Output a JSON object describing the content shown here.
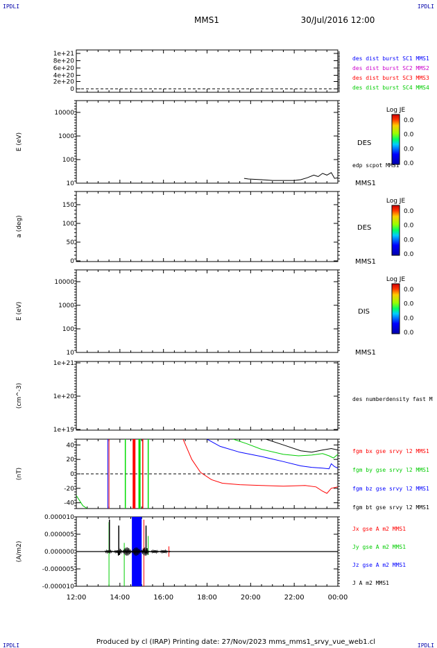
{
  "header": {
    "corner_tl": "IPDLI",
    "corner_tr": "IPDLI",
    "corner_bl": "IPDLI",
    "corner_br": "IPDLI",
    "title": "MMS1",
    "datetime": "30/Jul/2016 12:00"
  },
  "footer": {
    "text": "Produced by cl (IRAP)   Printing date: 27/Nov/2023   mms_mms1_srvy_vue_web1.cl"
  },
  "colors": {
    "black": "#000000",
    "red": "#ff0000",
    "green": "#00dd00",
    "blue": "#0000ff",
    "magenta": "#cc00cc",
    "bright_green": "#00ee00"
  },
  "chart_data": [
    {
      "type": "line",
      "panel": "burst",
      "yticks": [
        "1e+21",
        "8e+20",
        "6e+20",
        "4e+20",
        "2e+20",
        "0"
      ],
      "legend": [
        {
          "label": "des dist burst SC1 MMS1",
          "color": "#0000ff"
        },
        {
          "label": "des dist burst SC2 MMS2",
          "color": "#cc00cc"
        },
        {
          "label": "des dist burst SC3 MMS3",
          "color": "#ff0000"
        },
        {
          "label": "des dist burst SC4 MMS4",
          "color": "#00cc00"
        }
      ]
    },
    {
      "type": "heatmap",
      "panel": "des-energy",
      "ylabel": "E (eV)",
      "yscale": "log",
      "yticks": [
        "10000",
        "1000",
        "100",
        "10"
      ],
      "right_label": "DES",
      "overlay_label": "edp scpot MMS1",
      "bottom_label": "MMS1",
      "colorbar": {
        "title": "Log JE",
        "ticks": [
          "0.0",
          "0.0",
          "0.0",
          "0.0"
        ]
      },
      "scpot_line": [
        [
          19.7,
          16
        ],
        [
          19.9,
          15
        ],
        [
          20.5,
          14
        ],
        [
          21.0,
          13
        ],
        [
          21.5,
          13
        ],
        [
          22.0,
          13
        ],
        [
          22.3,
          14
        ],
        [
          22.6,
          17
        ],
        [
          22.9,
          22
        ],
        [
          23.1,
          19
        ],
        [
          23.3,
          26
        ],
        [
          23.5,
          22
        ],
        [
          23.7,
          28
        ],
        [
          23.85,
          16
        ],
        [
          24.0,
          17
        ]
      ]
    },
    {
      "type": "heatmap",
      "panel": "des-pitch",
      "ylabel": "a (deg)",
      "yticks": [
        "150",
        "100",
        "50",
        "0"
      ],
      "right_label": "DES",
      "bottom_label": "MMS1",
      "colorbar": {
        "title": "Log JE",
        "ticks": [
          "0.0",
          "0.0",
          "0.0",
          "0.0"
        ]
      }
    },
    {
      "type": "heatmap",
      "panel": "dis-energy",
      "ylabel": "E (eV)",
      "yscale": "log",
      "yticks": [
        "10000",
        "1000",
        "100",
        "10"
      ],
      "right_label": "DIS",
      "bottom_label": "MMS1",
      "colorbar": {
        "title": "Log JE",
        "ticks": [
          "0.0",
          "0.0",
          "0.0",
          "0.0"
        ]
      }
    },
    {
      "type": "line",
      "panel": "density",
      "ylabel": "(cm^-3)",
      "yscale": "log",
      "yticks": [
        "1e+21",
        "1e+20",
        "1e+19"
      ],
      "right_label": "des numberdensity fast M"
    },
    {
      "type": "line",
      "panel": "fgm",
      "ylabel": "(nT)",
      "ylim": [
        -48,
        48
      ],
      "yticks": [
        "40",
        "20",
        "0",
        "-20",
        "-40"
      ],
      "legend": [
        {
          "label": "fgm bx gse srvy l2 MMS1",
          "color": "#ff0000"
        },
        {
          "label": "fgm by gse srvy l2 MMS1",
          "color": "#00cc00"
        },
        {
          "label": "fgm bz gse srvy l2 MMS1",
          "color": "#0000ff"
        },
        {
          "label": "fgm bt gse srvy l2 MMS1",
          "color": "#000000"
        }
      ],
      "series": [
        {
          "name": "fgm bx gse srvy l2 MMS1",
          "color": "#ff0000",
          "points": [
            [
              16.9,
              48
            ],
            [
              17.3,
              20
            ],
            [
              17.7,
              2
            ],
            [
              18.2,
              -8
            ],
            [
              18.7,
              -13
            ],
            [
              19.5,
              -15
            ],
            [
              20.5,
              -16
            ],
            [
              21.5,
              -17
            ],
            [
              22.5,
              -16
            ],
            [
              23.0,
              -18
            ],
            [
              23.3,
              -24
            ],
            [
              23.5,
              -27
            ],
            [
              23.7,
              -20
            ],
            [
              24.0,
              -18
            ]
          ]
        },
        {
          "name": "fgm by gse srvy l2 MMS1",
          "color": "#00cc00",
          "points": [
            [
              19.2,
              48
            ],
            [
              19.8,
              42
            ],
            [
              20.5,
              34
            ],
            [
              21.5,
              27
            ],
            [
              22.2,
              25
            ],
            [
              22.8,
              26
            ],
            [
              23.3,
              28
            ],
            [
              23.6,
              25
            ],
            [
              23.8,
              22
            ],
            [
              24.0,
              27
            ]
          ]
        },
        {
          "name": "fgm bz gse srvy l2 MMS1",
          "color": "#0000ff",
          "points": [
            [
              18.0,
              48
            ],
            [
              18.6,
              38
            ],
            [
              19.5,
              30
            ],
            [
              20.5,
              24
            ],
            [
              21.5,
              17
            ],
            [
              22.3,
              11
            ],
            [
              22.8,
              9
            ],
            [
              23.3,
              8
            ],
            [
              23.6,
              7
            ],
            [
              23.7,
              14
            ],
            [
              23.85,
              10
            ],
            [
              24.0,
              8
            ]
          ]
        },
        {
          "name": "fgm bt gse srvy l2 MMS1",
          "color": "#000000",
          "points": [
            [
              20.7,
              48
            ],
            [
              21.5,
              40
            ],
            [
              22.3,
              32
            ],
            [
              22.8,
              30
            ],
            [
              23.3,
              33
            ],
            [
              23.7,
              35
            ],
            [
              24.0,
              33
            ]
          ]
        }
      ]
    },
    {
      "type": "line",
      "panel": "current",
      "ylabel": "(A/m2)",
      "ylim": [
        -1e-05,
        1e-05
      ],
      "yticks": [
        "0.000010",
        "0.000005",
        "0.000000",
        "-0.000005",
        "-0.000010"
      ],
      "xticks": [
        "12:00",
        "14:00",
        "16:00",
        "18:00",
        "20:00",
        "22:00",
        "00:00"
      ],
      "legend": [
        {
          "label": "Jx gse A m2 MMS1",
          "color": "#ff0000"
        },
        {
          "label": "Jy gse A m2 MMS1",
          "color": "#00cc00"
        },
        {
          "label": "Jz gse A m2 MMS1",
          "color": "#0000ff"
        },
        {
          "label": "J A m2 MMS1",
          "color": "#000000"
        }
      ]
    }
  ]
}
